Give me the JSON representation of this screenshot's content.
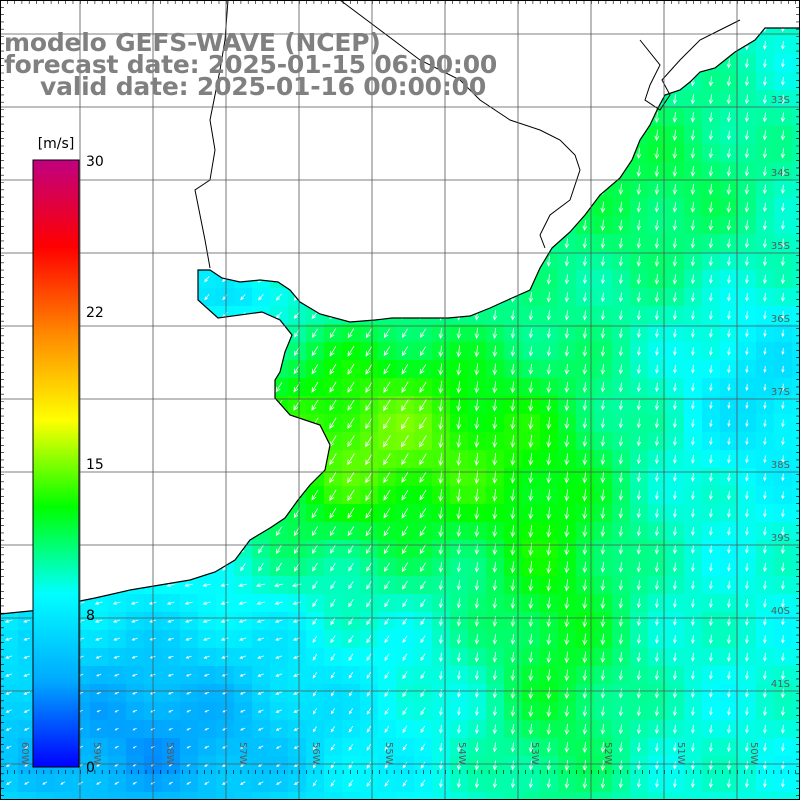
{
  "header": {
    "model_title": "modelo GEFS-WAVE (NCEP)",
    "forecast_date": "forecast date: 2025-01-15 06:00:00",
    "valid_date": "valid date: 2025-01-16 00:00:00"
  },
  "colorbar": {
    "unit": "[m/s]",
    "ticks": [
      "30",
      "22",
      "15",
      "8",
      "0"
    ],
    "range": [
      0,
      30
    ],
    "colors": [
      "#0000ff",
      "#00aaff",
      "#00ffff",
      "#00ff00",
      "#ffff00",
      "#ff8800",
      "#ff0000",
      "#c00080"
    ]
  },
  "map": {
    "variable": "wind speed and direction",
    "lat_labels": [
      "33S",
      "34S",
      "35S",
      "36S",
      "37S",
      "38S",
      "39S",
      "40S",
      "41S"
    ],
    "lon_labels": [
      "60W",
      "59W",
      "58W",
      "57W",
      "56W",
      "55W",
      "54W",
      "53W",
      "52W",
      "51W",
      "50W"
    ],
    "land_color": "#ffffff",
    "arrow_color": "#ffffff",
    "grid_color": "#555555"
  }
}
